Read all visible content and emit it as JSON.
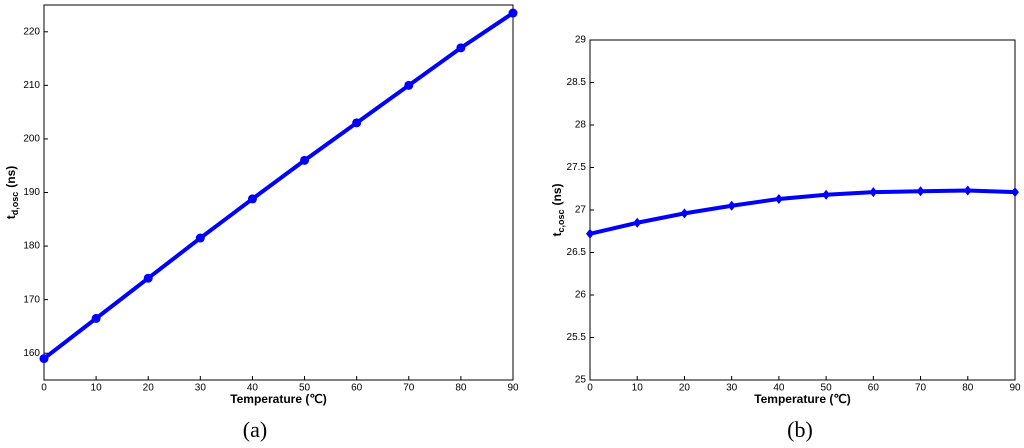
{
  "chart_data": [
    {
      "type": "line",
      "caption": "(a)",
      "xlabel": "Temperature (℃)",
      "ylabel": "t",
      "ylabel_sub": "d,osc",
      "ylabel_unit": "(ns)",
      "x": [
        0,
        10,
        20,
        30,
        40,
        50,
        60,
        70,
        80,
        90
      ],
      "series": [
        {
          "color": "#0000ff",
          "marker": "circle",
          "values": [
            159,
            166.5,
            174,
            181.5,
            188.8,
            196,
            203,
            210,
            217,
            223.5
          ]
        }
      ],
      "xlim": [
        0,
        90
      ],
      "xticks": [
        0,
        10,
        20,
        30,
        40,
        50,
        60,
        70,
        80,
        90
      ],
      "ylim": [
        155,
        225
      ],
      "yticks": [
        160,
        170,
        180,
        190,
        200,
        210,
        220
      ]
    },
    {
      "type": "line",
      "caption": "(b)",
      "xlabel": "Temperature (℃)",
      "ylabel": "t",
      "ylabel_sub": "c,osc",
      "ylabel_unit": "(ns)",
      "x": [
        0,
        10,
        20,
        30,
        40,
        50,
        60,
        70,
        80,
        90
      ],
      "series": [
        {
          "color": "#0000ff",
          "marker": "diamond",
          "values": [
            26.72,
            26.85,
            26.96,
            27.05,
            27.13,
            27.18,
            27.21,
            27.22,
            27.23,
            27.21
          ]
        }
      ],
      "xlim": [
        0,
        90
      ],
      "xticks": [
        0,
        10,
        20,
        30,
        40,
        50,
        60,
        70,
        80,
        90
      ],
      "ylim": [
        25,
        29
      ],
      "yticks": [
        25,
        25.5,
        26,
        26.5,
        27,
        27.5,
        28,
        28.5,
        29
      ]
    }
  ]
}
